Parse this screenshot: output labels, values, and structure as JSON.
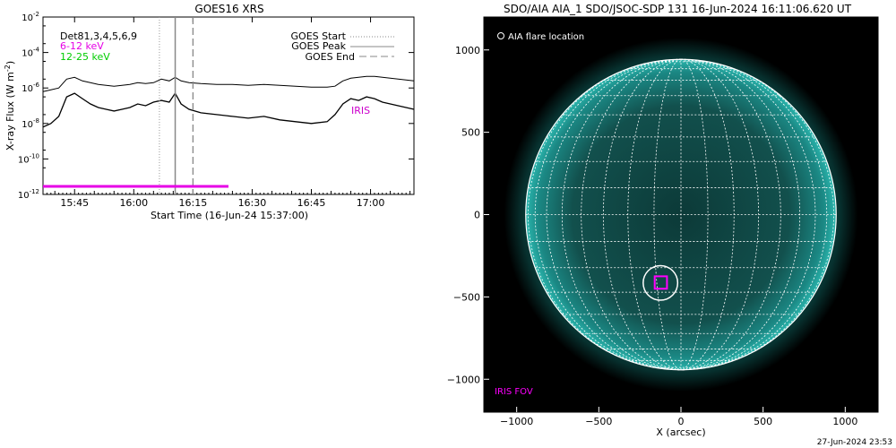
{
  "footer": {
    "timestamp": "27-Jun-2024 23:53"
  },
  "chart_data": [
    {
      "type": "line",
      "title": "GOES16 XRS",
      "xlabel": "Start Time (16-Jun-24 15:37:00)",
      "ylabel_main": "X-ray Flux (W m",
      "ylabel_sup": "-2",
      "ylabel_close": ")",
      "ylog": true,
      "ylim": [
        1e-12,
        0.01
      ],
      "xlim_minutes": [
        0,
        94
      ],
      "x_tick_labels": [
        "15:45",
        "16:00",
        "16:15",
        "16:30",
        "16:45",
        "17:00"
      ],
      "x_tick_minutes": [
        8,
        23,
        38,
        53,
        68,
        83
      ],
      "y_tick_exponents": [
        -2,
        -4,
        -6,
        -8,
        -10,
        -12
      ],
      "legend_left": {
        "title": "Det81,3,4,5,6,9",
        "items": [
          {
            "label": "6-12 keV",
            "color": "#e600e6"
          },
          {
            "label": "12-25 keV",
            "color": "#00cc00"
          }
        ]
      },
      "legend_right": [
        {
          "label": "GOES Start",
          "style": "dotted"
        },
        {
          "label": "GOES Peak",
          "style": "solid"
        },
        {
          "label": "GOES End",
          "style": "dashed"
        }
      ],
      "annotation": {
        "text": "IRIS",
        "color": "#cc00cc"
      },
      "vlines_minutes": {
        "start": 29.5,
        "peak": 33.5,
        "end": 38
      },
      "iris_bar_minutes": [
        0,
        47
      ],
      "iris_bar_value": 1e-12,
      "series": [
        {
          "color": "#000000",
          "x": [
            0,
            2,
            4,
            6,
            8,
            10,
            12,
            14,
            16,
            18,
            20,
            22,
            24,
            26,
            28,
            30,
            32,
            33.5,
            35,
            37,
            40,
            44,
            48,
            52,
            56,
            60,
            64,
            68,
            72,
            74,
            76,
            78,
            80,
            82,
            84,
            86,
            88,
            90,
            92,
            94
          ],
          "log_y": [
            -6.2,
            -6.1,
            -6.0,
            -5.5,
            -5.4,
            -5.6,
            -5.7,
            -5.8,
            -5.85,
            -5.9,
            -5.85,
            -5.8,
            -5.7,
            -5.75,
            -5.7,
            -5.5,
            -5.6,
            -5.4,
            -5.6,
            -5.7,
            -5.75,
            -5.8,
            -5.8,
            -5.85,
            -5.8,
            -5.85,
            -5.9,
            -5.95,
            -5.95,
            -5.9,
            -5.6,
            -5.45,
            -5.4,
            -5.35,
            -5.35,
            -5.4,
            -5.45,
            -5.5,
            -5.55,
            -5.6
          ]
        },
        {
          "color": "#000000",
          "x": [
            0,
            2,
            4,
            6,
            8,
            10,
            12,
            14,
            16,
            18,
            20,
            22,
            24,
            26,
            28,
            30,
            32,
            33.5,
            35,
            37,
            40,
            44,
            48,
            52,
            56,
            60,
            64,
            68,
            72,
            74,
            76,
            78,
            80,
            82,
            84,
            86,
            88,
            90,
            92,
            94
          ],
          "log_y": [
            -8.2,
            -8.0,
            -7.6,
            -6.5,
            -6.3,
            -6.6,
            -6.9,
            -7.1,
            -7.2,
            -7.3,
            -7.2,
            -7.1,
            -6.9,
            -7.0,
            -6.8,
            -6.7,
            -6.8,
            -6.3,
            -6.9,
            -7.2,
            -7.4,
            -7.5,
            -7.6,
            -7.7,
            -7.6,
            -7.8,
            -7.9,
            -8.0,
            -7.9,
            -7.5,
            -6.9,
            -6.6,
            -6.7,
            -6.5,
            -6.6,
            -6.8,
            -6.9,
            -7.0,
            -7.1,
            -7.2
          ]
        }
      ]
    },
    {
      "type": "image",
      "title": "SDO/AIA AIA_1 SDO/JSOC-SDP 131 16-Jun-2024 16:11:06.620 UT",
      "xlabel": "X (arcsec)",
      "xlim": [
        -1200,
        1200
      ],
      "ylim": [
        -1200,
        1200
      ],
      "x_ticks": [
        -1000,
        -500,
        0,
        500,
        1000
      ],
      "y_ticks": [
        1000,
        500,
        0,
        -500,
        -1000
      ],
      "x_tick_labels": [
        "−1000",
        "−500",
        "0",
        "500",
        "1000"
      ],
      "y_tick_labels": [
        "1000",
        "500",
        "0",
        "−500",
        "−1000"
      ],
      "solar_radius_arcsec": 945,
      "grid_spacing_deg": 10,
      "legend_flare": "AIA flare location",
      "iris_fov_label": "IRIS FOV",
      "flare_location": [
        -125,
        -415
      ],
      "flare_circle_radius_arcsec": 105,
      "iris_fov_box": [
        [
          -160,
          -375
        ],
        [
          -85,
          -375
        ],
        [
          -85,
          -450
        ],
        [
          -160,
          -450
        ]
      ],
      "colors": {
        "disk_edge": "#1f9e9a",
        "disk_center": "#0c3a38",
        "iris": "#ff00ff",
        "grid": "#ffffff"
      }
    }
  ]
}
